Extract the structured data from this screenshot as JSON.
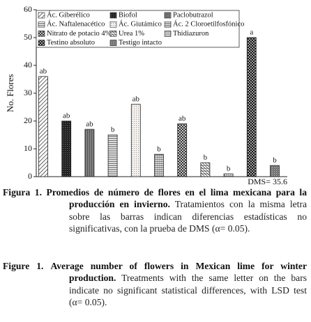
{
  "chart_data": {
    "type": "bar",
    "y_label": "No. Flores",
    "categories": [
      "Ác. Giberélico",
      "Biofol",
      "Paclobutrazol",
      "Ác. Naftalenacético",
      "Ác. Giutámico",
      "Ác. 2 Cloroetilfosfónico",
      "Nitrato de potacio 4%",
      "Urea 1%",
      "Thidiazuron",
      "Testino absoluto",
      "Testigo intacto"
    ],
    "values": [
      36,
      20,
      17,
      15,
      26,
      8,
      19,
      5,
      1,
      50,
      4
    ],
    "letters": [
      "ab",
      "ab",
      "ab",
      "b",
      "ab",
      "b",
      "ab",
      "b",
      "b",
      "a",
      "b"
    ],
    "annotation": "DMS= 35.6",
    "ylim": [
      0,
      60
    ],
    "yticks": [
      0,
      10,
      20,
      30,
      40,
      50,
      60
    ],
    "grid": false
  },
  "caption_es": {
    "label": "Figura 1.",
    "bold": "Promedios de número de flores en el lima mexicana para la producción en invierno.",
    "text": "Tratamientos con la misma letra sobre las barras indican diferencias estadísticas no significativas, con la prueba de DMS (α= 0.05)."
  },
  "caption_en": {
    "label": "Figure 1.",
    "bold": "Average number of flowers in Mexican lime for winter production.",
    "text": "Treatments with the same letter on the bars indicate no significant statistical differences, with LSD test (α= 0.05)."
  }
}
